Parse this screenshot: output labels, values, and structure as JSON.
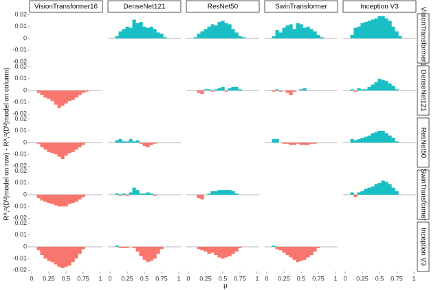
{
  "chart_data": {
    "type": "area-facets",
    "models": [
      "VisionTransformer16",
      "DenseNet121",
      "ResNet50",
      "SwinTransformer",
      "Inception V3"
    ],
    "x_label": "μ",
    "y_label": "Rᴬ,ᵇ(Dᵁ|model on row) - Rᴬ,ᵇ(Dᵁ|model on column)",
    "x": [
      0,
      0.05,
      0.1,
      0.15,
      0.2,
      0.25,
      0.3,
      0.35,
      0.4,
      0.45,
      0.5,
      0.55,
      0.6,
      0.65,
      0.7,
      0.75,
      0.8,
      0.85,
      0.9,
      0.95,
      1
    ],
    "xlim": [
      -0.03,
      1.03
    ],
    "xticks": [
      0,
      0.25,
      0.5,
      0.75,
      1
    ],
    "ylim": [
      -0.021,
      0.021
    ],
    "yticks": [
      0.02,
      0.01,
      0,
      -0.01,
      -0.02
    ],
    "positive_color": "#19bfc4",
    "negative_color": "#f8766d",
    "values": [
      [
        null,
        [
          0,
          0,
          0.002,
          0.006,
          0.008,
          0.01,
          0.009,
          0.016,
          0.013,
          0.014,
          0.01,
          0.009,
          0.01,
          0.008,
          0.005,
          0.004,
          0.001,
          0,
          0,
          0,
          0
        ],
        [
          0,
          0,
          0.001,
          0.004,
          0.006,
          0.008,
          0.01,
          0.012,
          0.011,
          0.014,
          0.015,
          0.013,
          0.012,
          0.008,
          0.005,
          0.002,
          0.001,
          0,
          0,
          0,
          0
        ],
        [
          0,
          0,
          0.002,
          0.007,
          0.005,
          0.009,
          0.011,
          0.012,
          0.008,
          0.013,
          0.012,
          0.009,
          0.01,
          0.008,
          0.006,
          0.003,
          0.001,
          0,
          0,
          0,
          0
        ],
        [
          0,
          0,
          0.003,
          0.009,
          0.01,
          0.013,
          0.014,
          0.015,
          0.016,
          0.017,
          0.019,
          0.019,
          0.017,
          0.015,
          0.01,
          0.006,
          0.002,
          0,
          0,
          0,
          0
        ]
      ],
      [
        [
          0,
          0,
          -0.002,
          -0.004,
          -0.006,
          -0.007,
          -0.009,
          -0.012,
          -0.015,
          -0.013,
          -0.011,
          -0.009,
          -0.008,
          -0.006,
          -0.004,
          -0.002,
          -0.001,
          0,
          0,
          0,
          0
        ],
        null,
        [
          0,
          0,
          0,
          -0.002,
          -0.003,
          0.001,
          0.001,
          -0.001,
          0.001,
          0.002,
          0.003,
          -0.001,
          0.002,
          0.003,
          0.003,
          0.001,
          0,
          0,
          0,
          0,
          0
        ],
        [
          0,
          0,
          -0.001,
          0.001,
          -0.001,
          0,
          -0.002,
          -0.004,
          -0.001,
          0,
          0.001,
          0.002,
          0,
          0,
          0,
          0,
          0,
          0,
          0,
          0,
          0
        ],
        [
          0,
          0,
          0.001,
          -0.001,
          0.002,
          0.001,
          0.001,
          0.003,
          0.005,
          0.007,
          0.01,
          0.009,
          0.008,
          0.006,
          0.004,
          0.001,
          0,
          0,
          0,
          0,
          0
        ]
      ],
      [
        [
          0,
          0,
          -0.001,
          -0.004,
          -0.006,
          -0.008,
          -0.009,
          -0.01,
          -0.012,
          -0.014,
          -0.011,
          -0.009,
          -0.008,
          -0.006,
          -0.004,
          -0.002,
          0,
          0,
          0,
          0,
          0
        ],
        [
          0,
          0,
          0.002,
          0.003,
          0.001,
          0.001,
          0.003,
          0.001,
          0.002,
          -0.001,
          -0.003,
          -0.004,
          -0.002,
          -0.001,
          0,
          0,
          0,
          0,
          0,
          0,
          0
        ],
        null,
        [
          0,
          0,
          0.003,
          0.003,
          0,
          -0.001,
          -0.001,
          -0.002,
          -0.002,
          -0.001,
          -0.002,
          -0.002,
          -0.002,
          -0.001,
          -0.001,
          0,
          0,
          0,
          0,
          0,
          0
        ],
        [
          0,
          0,
          0.003,
          0.002,
          0.003,
          0.004,
          0.005,
          0.006,
          0.008,
          0.009,
          0.01,
          0.01,
          0.008,
          0.006,
          0.004,
          0.001,
          0,
          0,
          0,
          0,
          0
        ]
      ],
      [
        [
          0,
          0,
          -0.003,
          -0.005,
          -0.006,
          -0.007,
          -0.008,
          -0.009,
          -0.01,
          -0.01,
          -0.01,
          -0.008,
          -0.007,
          -0.006,
          -0.004,
          -0.002,
          0,
          0,
          0,
          0,
          0
        ],
        [
          0,
          0,
          0.001,
          -0.001,
          0.001,
          -0.001,
          0.002,
          0.006,
          0.004,
          0.001,
          0.001,
          0.002,
          0.001,
          -0.001,
          0,
          0,
          0,
          0,
          0,
          0,
          0
        ],
        [
          0,
          0,
          0,
          -0.003,
          -0.004,
          0,
          0.001,
          0.003,
          0.003,
          0.004,
          0.004,
          0.004,
          0.004,
          0.003,
          0.001,
          0,
          0,
          0,
          0,
          0,
          0
        ],
        null,
        [
          0,
          0,
          0.002,
          -0.002,
          0.002,
          0.003,
          0.005,
          0.006,
          0.007,
          0.009,
          0.01,
          0.012,
          0.011,
          0.009,
          0.006,
          0.003,
          0,
          0,
          0,
          0,
          0
        ]
      ],
      [
        [
          0,
          0,
          -0.003,
          -0.007,
          -0.01,
          -0.012,
          -0.013,
          -0.015,
          -0.017,
          -0.018,
          -0.017,
          -0.016,
          -0.013,
          -0.01,
          -0.006,
          -0.002,
          0,
          0,
          0,
          0,
          0
        ],
        [
          0,
          0,
          0.001,
          -0.001,
          -0.001,
          -0.001,
          0,
          -0.001,
          -0.004,
          -0.008,
          -0.011,
          -0.013,
          -0.012,
          -0.01,
          -0.006,
          -0.002,
          0,
          0,
          0,
          0,
          0
        ],
        [
          0,
          0,
          0,
          -0.002,
          -0.003,
          -0.004,
          -0.006,
          -0.005,
          -0.007,
          -0.009,
          -0.01,
          -0.009,
          -0.008,
          -0.006,
          -0.004,
          -0.001,
          0,
          0,
          0,
          0,
          0
        ],
        [
          0,
          0,
          0.001,
          -0.002,
          -0.003,
          -0.005,
          -0.007,
          -0.009,
          -0.011,
          -0.013,
          -0.012,
          -0.011,
          -0.009,
          -0.007,
          -0.004,
          -0.001,
          0,
          0,
          0,
          0,
          0
        ],
        null
      ]
    ]
  }
}
